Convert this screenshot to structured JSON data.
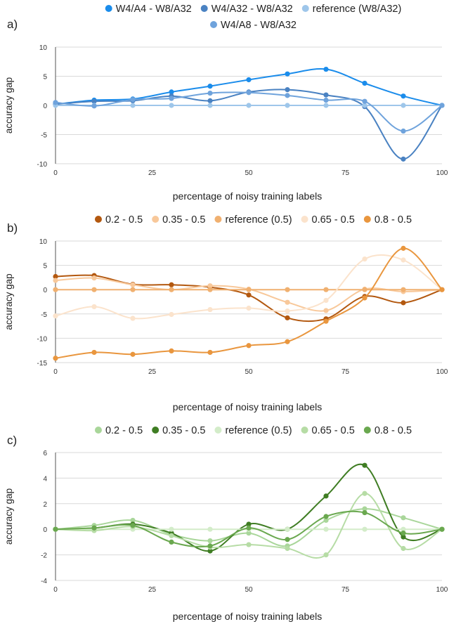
{
  "chart_data": [
    {
      "panel_label": "a)",
      "type": "line",
      "xlabel": "percentage of noisy training labels",
      "ylabel": "accuracy gap",
      "x": [
        0,
        10,
        20,
        30,
        40,
        50,
        60,
        70,
        80,
        90,
        100
      ],
      "xticks": [
        "0",
        "25",
        "50",
        "75",
        "100"
      ],
      "xlim": [
        0,
        100
      ],
      "ylim": [
        -10,
        10
      ],
      "yticks": [
        "10",
        "5",
        "0",
        "-5",
        "-10"
      ],
      "grid": true,
      "legend_position": "top",
      "series": [
        {
          "name": "W4/A4 - W8/A32",
          "color": "#1a8ceb",
          "values": [
            0.2,
            0.9,
            1.1,
            2.3,
            3.3,
            4.4,
            5.4,
            6.2,
            3.8,
            1.6,
            0.0
          ]
        },
        {
          "name": "W4/A32 - W8/A32",
          "color": "#4a82c2",
          "values": [
            0.2,
            0.7,
            0.8,
            1.6,
            0.8,
            2.3,
            2.7,
            1.8,
            -0.2,
            -9.2,
            0.0
          ]
        },
        {
          "name": "reference (W8/A32)",
          "color": "#9ec6ea",
          "values": [
            0.0,
            0.0,
            0.0,
            0.0,
            0.0,
            0.0,
            0.0,
            0.0,
            0.0,
            0.0,
            0.0
          ]
        },
        {
          "name": "W4/A8 - W8/A32",
          "color": "#6fa3dc",
          "values": [
            0.5,
            -0.1,
            1.0,
            1.2,
            2.1,
            2.2,
            1.7,
            0.9,
            0.7,
            -4.4,
            0.0
          ]
        }
      ]
    },
    {
      "panel_label": "b)",
      "type": "line",
      "xlabel": "percentage of noisy training labels",
      "ylabel": "accuracy gap",
      "x": [
        0,
        10,
        20,
        30,
        40,
        50,
        60,
        70,
        80,
        90,
        100
      ],
      "xticks": [
        "0",
        "25",
        "50",
        "75",
        "100"
      ],
      "xlim": [
        0,
        100
      ],
      "ylim": [
        -15,
        10
      ],
      "yticks": [
        "10",
        "5",
        "0",
        "-5",
        "-10",
        "-15"
      ],
      "grid": true,
      "legend_position": "top",
      "series": [
        {
          "name": "0.2 - 0.5",
          "color": "#b3580f",
          "values": [
            2.7,
            2.9,
            1.1,
            1.0,
            0.5,
            -1.1,
            -5.8,
            -6.0,
            -1.4,
            -2.7,
            0.0
          ]
        },
        {
          "name": "0.35 - 0.5",
          "color": "#f8c89a",
          "values": [
            1.9,
            2.4,
            1.0,
            0.0,
            0.8,
            0.1,
            -2.6,
            -4.3,
            0.1,
            -0.4,
            0.0
          ]
        },
        {
          "name": "reference (0.5)",
          "color": "#f0b070",
          "values": [
            0.0,
            0.0,
            0.0,
            0.0,
            0.0,
            0.0,
            0.0,
            0.0,
            0.0,
            0.0,
            0.0
          ]
        },
        {
          "name": "0.65 - 0.5",
          "color": "#fbe3cc",
          "values": [
            -5.4,
            -3.5,
            -5.9,
            -5.1,
            -4.1,
            -3.8,
            -4.4,
            -2.2,
            6.3,
            6.1,
            0.0
          ]
        },
        {
          "name": "0.8 - 0.5",
          "color": "#e9963e",
          "values": [
            -14.1,
            -12.9,
            -13.3,
            -12.6,
            -12.9,
            -11.5,
            -10.7,
            -6.5,
            -1.7,
            8.5,
            0.0
          ]
        }
      ]
    },
    {
      "panel_label": "c)",
      "type": "line",
      "xlabel": "percentage of noisy training labels",
      "ylabel": "accuracy gap",
      "x": [
        0,
        10,
        20,
        30,
        40,
        50,
        60,
        70,
        80,
        90,
        100
      ],
      "xticks": [
        "0",
        "25",
        "50",
        "75",
        "100"
      ],
      "xlim": [
        0,
        100
      ],
      "ylim": [
        -4,
        6
      ],
      "yticks": [
        "6",
        "4",
        "2",
        "0",
        "-2",
        "-4"
      ],
      "grid": true,
      "legend_position": "top",
      "series": [
        {
          "name": "0.2 - 0.5",
          "color": "#a9d69a",
          "values": [
            0.0,
            0.3,
            0.7,
            -0.4,
            -0.9,
            -0.3,
            -1.3,
            0.7,
            1.6,
            0.9,
            0.0
          ]
        },
        {
          "name": "0.35 - 0.5",
          "color": "#3f7d23",
          "values": [
            0.0,
            0.1,
            0.4,
            -0.3,
            -1.7,
            0.4,
            0.0,
            2.6,
            5.0,
            -0.6,
            0.0
          ]
        },
        {
          "name": "reference (0.5)",
          "color": "#d3ecc9",
          "values": [
            0.0,
            0.0,
            0.0,
            0.0,
            0.0,
            0.0,
            0.0,
            0.0,
            0.0,
            0.0,
            0.0
          ]
        },
        {
          "name": "0.65 - 0.5",
          "color": "#b6dca5",
          "values": [
            0.0,
            -0.1,
            0.2,
            -0.5,
            -1.4,
            -1.2,
            -1.5,
            -2.0,
            2.8,
            -1.5,
            0.0
          ]
        },
        {
          "name": "0.8 - 0.5",
          "color": "#6aa84f",
          "values": [
            0.0,
            0.1,
            0.3,
            -1.0,
            -1.3,
            0.1,
            -0.8,
            1.0,
            1.3,
            -0.3,
            0.0
          ]
        }
      ]
    }
  ]
}
